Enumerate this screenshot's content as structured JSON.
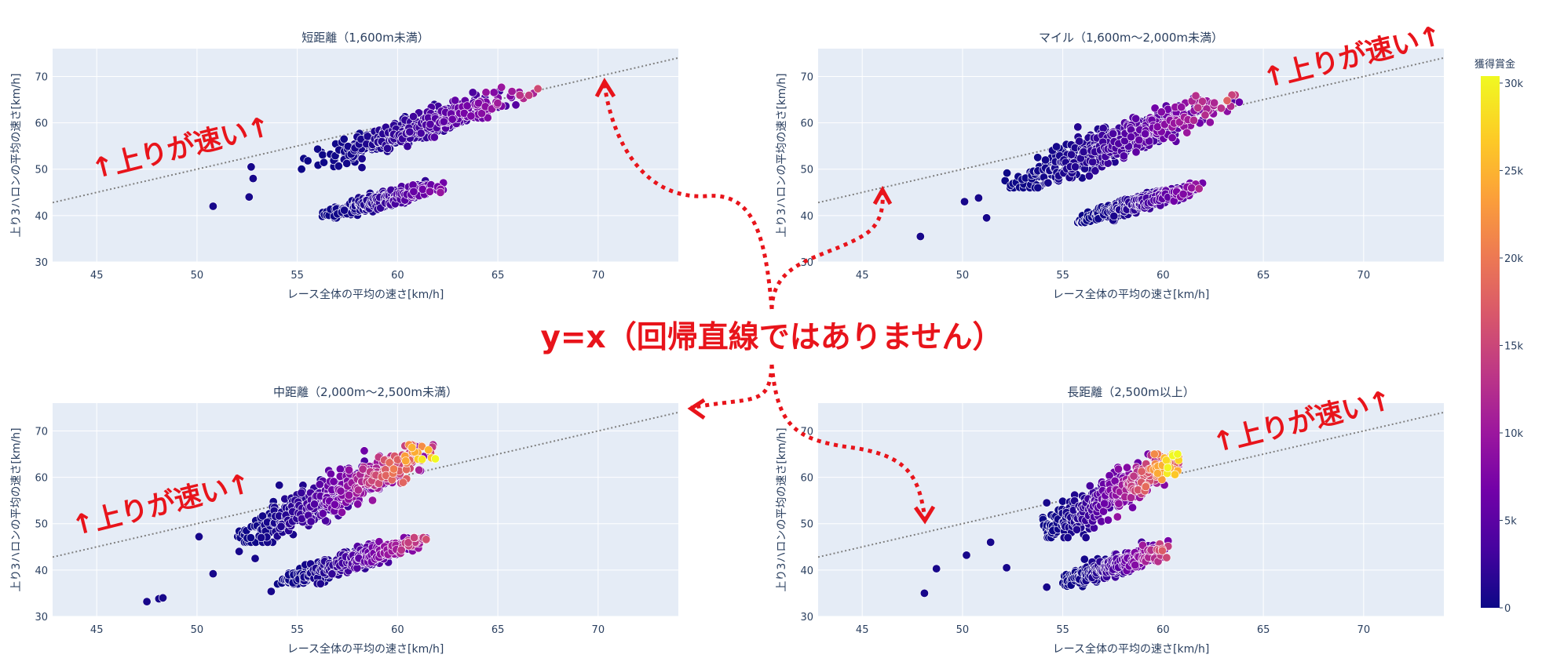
{
  "chart_data": [
    {
      "type": "scatter",
      "title": "短距離（1,600m未満）",
      "xlabel": "レース全体の平均の速さ[km/h]",
      "ylabel": "上り3ハロンの平均の速さ[km/h]",
      "xlim": [
        42.8,
        74
      ],
      "ylim": [
        30,
        76
      ],
      "xticks": [
        45,
        50,
        55,
        60,
        65,
        70
      ],
      "yticks": [
        30,
        40,
        50,
        60,
        70
      ],
      "grid": true,
      "reference_line": "y=x",
      "annotation": "↑上りが速い↑",
      "clusters": [
        {
          "x": [
            55,
            67
          ],
          "y": [
            50,
            68
          ],
          "slope": 1.42,
          "spread_x": 2.0,
          "spread_y": 1.3,
          "prize_peak": 0.45
        },
        {
          "x": [
            56,
            62.8
          ],
          "y": [
            39.5,
            47.5
          ],
          "slope": 1.12,
          "spread_x": 1.2,
          "spread_y": 0.7,
          "prize_peak": 0.35
        }
      ],
      "outliers": [
        [
          50.8,
          42
        ],
        [
          52.6,
          44
        ],
        [
          52.8,
          48
        ],
        [
          52.7,
          50.5
        ]
      ]
    },
    {
      "type": "scatter",
      "title": "マイル（1,600m〜2,000m未満）",
      "xlabel": "レース全体の平均の速さ[km/h]",
      "ylabel": "上り3ハロンの平均の速さ[km/h]",
      "xlim": [
        42.8,
        74
      ],
      "ylim": [
        30,
        76
      ],
      "xticks": [
        45,
        50,
        55,
        60,
        65,
        70
      ],
      "yticks": [
        30,
        40,
        50,
        60,
        70
      ],
      "grid": true,
      "reference_line": "y=x",
      "annotation": "↑上りが速い↑",
      "clusters": [
        {
          "x": [
            52,
            63.8
          ],
          "y": [
            46,
            66
          ],
          "slope": 1.7,
          "spread_x": 2.4,
          "spread_y": 1.8,
          "prize_peak": 0.55
        },
        {
          "x": [
            55.7,
            62
          ],
          "y": [
            38.5,
            47
          ],
          "slope": 1.2,
          "spread_x": 1.2,
          "spread_y": 0.7,
          "prize_peak": 0.35
        }
      ],
      "outliers": [
        [
          47.9,
          35.5
        ],
        [
          50.1,
          43
        ],
        [
          50.8,
          43.8
        ],
        [
          51.2,
          39.5
        ]
      ]
    },
    {
      "type": "scatter",
      "title": "中距離（2,000m〜2,500m未満）",
      "xlabel": "レース全体の平均の速さ[km/h]",
      "ylabel": "上り3ハロンの平均の速さ[km/h]",
      "xlim": [
        42.8,
        74
      ],
      "ylim": [
        30,
        76
      ],
      "xticks": [
        45,
        50,
        55,
        60,
        65,
        70
      ],
      "yticks": [
        30,
        40,
        50,
        60,
        70
      ],
      "grid": true,
      "reference_line": "y=x",
      "annotation": "↑上りが速い↑",
      "clusters": [
        {
          "x": [
            52,
            62
          ],
          "y": [
            46,
            67
          ],
          "slope": 2.0,
          "spread_x": 2.4,
          "spread_y": 2.0,
          "prize_peak": 1.0
        },
        {
          "x": [
            54,
            61.5
          ],
          "y": [
            37,
            47
          ],
          "slope": 1.3,
          "spread_x": 1.6,
          "spread_y": 1.0,
          "prize_peak": 0.55
        }
      ],
      "outliers": [
        [
          47.5,
          33.2
        ],
        [
          48.1,
          33.8
        ],
        [
          48.3,
          34
        ],
        [
          50.1,
          47.2
        ],
        [
          50.8,
          39.2
        ],
        [
          52.1,
          44
        ],
        [
          52.9,
          42.5
        ],
        [
          53.7,
          35.4
        ],
        [
          53.2,
          47
        ],
        [
          54.1,
          58.3
        ]
      ]
    },
    {
      "type": "scatter",
      "title": "長距離（2,500m以上）",
      "xlabel": "レース全体の平均の速さ[km/h]",
      "ylabel": "上り3ハロンの平均の速さ[km/h]",
      "xlim": [
        42.8,
        74
      ],
      "ylim": [
        30,
        76
      ],
      "xticks": [
        45,
        50,
        55,
        60,
        65,
        70
      ],
      "yticks": [
        30,
        40,
        50,
        60,
        70
      ],
      "grid": true,
      "reference_line": "y=x",
      "annotation": "↑上りが速い↑",
      "clusters": [
        {
          "x": [
            54,
            60.8
          ],
          "y": [
            47,
            65
          ],
          "slope": 2.3,
          "spread_x": 1.8,
          "spread_y": 1.8,
          "prize_peak": 1.0
        },
        {
          "x": [
            55,
            60.5
          ],
          "y": [
            36,
            46.5
          ],
          "slope": 1.4,
          "spread_x": 1.2,
          "spread_y": 0.9,
          "prize_peak": 0.6
        }
      ],
      "outliers": [
        [
          48.1,
          35
        ],
        [
          48.7,
          40.3
        ],
        [
          50.2,
          43.2
        ],
        [
          51.4,
          46
        ],
        [
          52.2,
          40.5
        ],
        [
          54.2,
          36.3
        ],
        [
          54.2,
          54.5
        ]
      ]
    }
  ],
  "colorbar": {
    "title": "獲得賞金",
    "tick_labels": [
      "0",
      "5k",
      "10k",
      "15k",
      "20k",
      "25k",
      "30k"
    ],
    "tick_values": [
      0,
      5000,
      10000,
      15000,
      20000,
      25000,
      30000
    ],
    "colors": [
      "#0d0887",
      "#46039f",
      "#7201a8",
      "#9c179e",
      "#bd3786",
      "#d8576b",
      "#ed7953",
      "#fb9f3a",
      "#fdca26",
      "#f0f921"
    ]
  },
  "center_note": "y=x（回帰直線ではありません）",
  "colors": {
    "annotation": "#e8141b",
    "plot_bg": "#e5ecf6",
    "grid": "#ffffff",
    "reference_line": "#7f7f7f"
  }
}
